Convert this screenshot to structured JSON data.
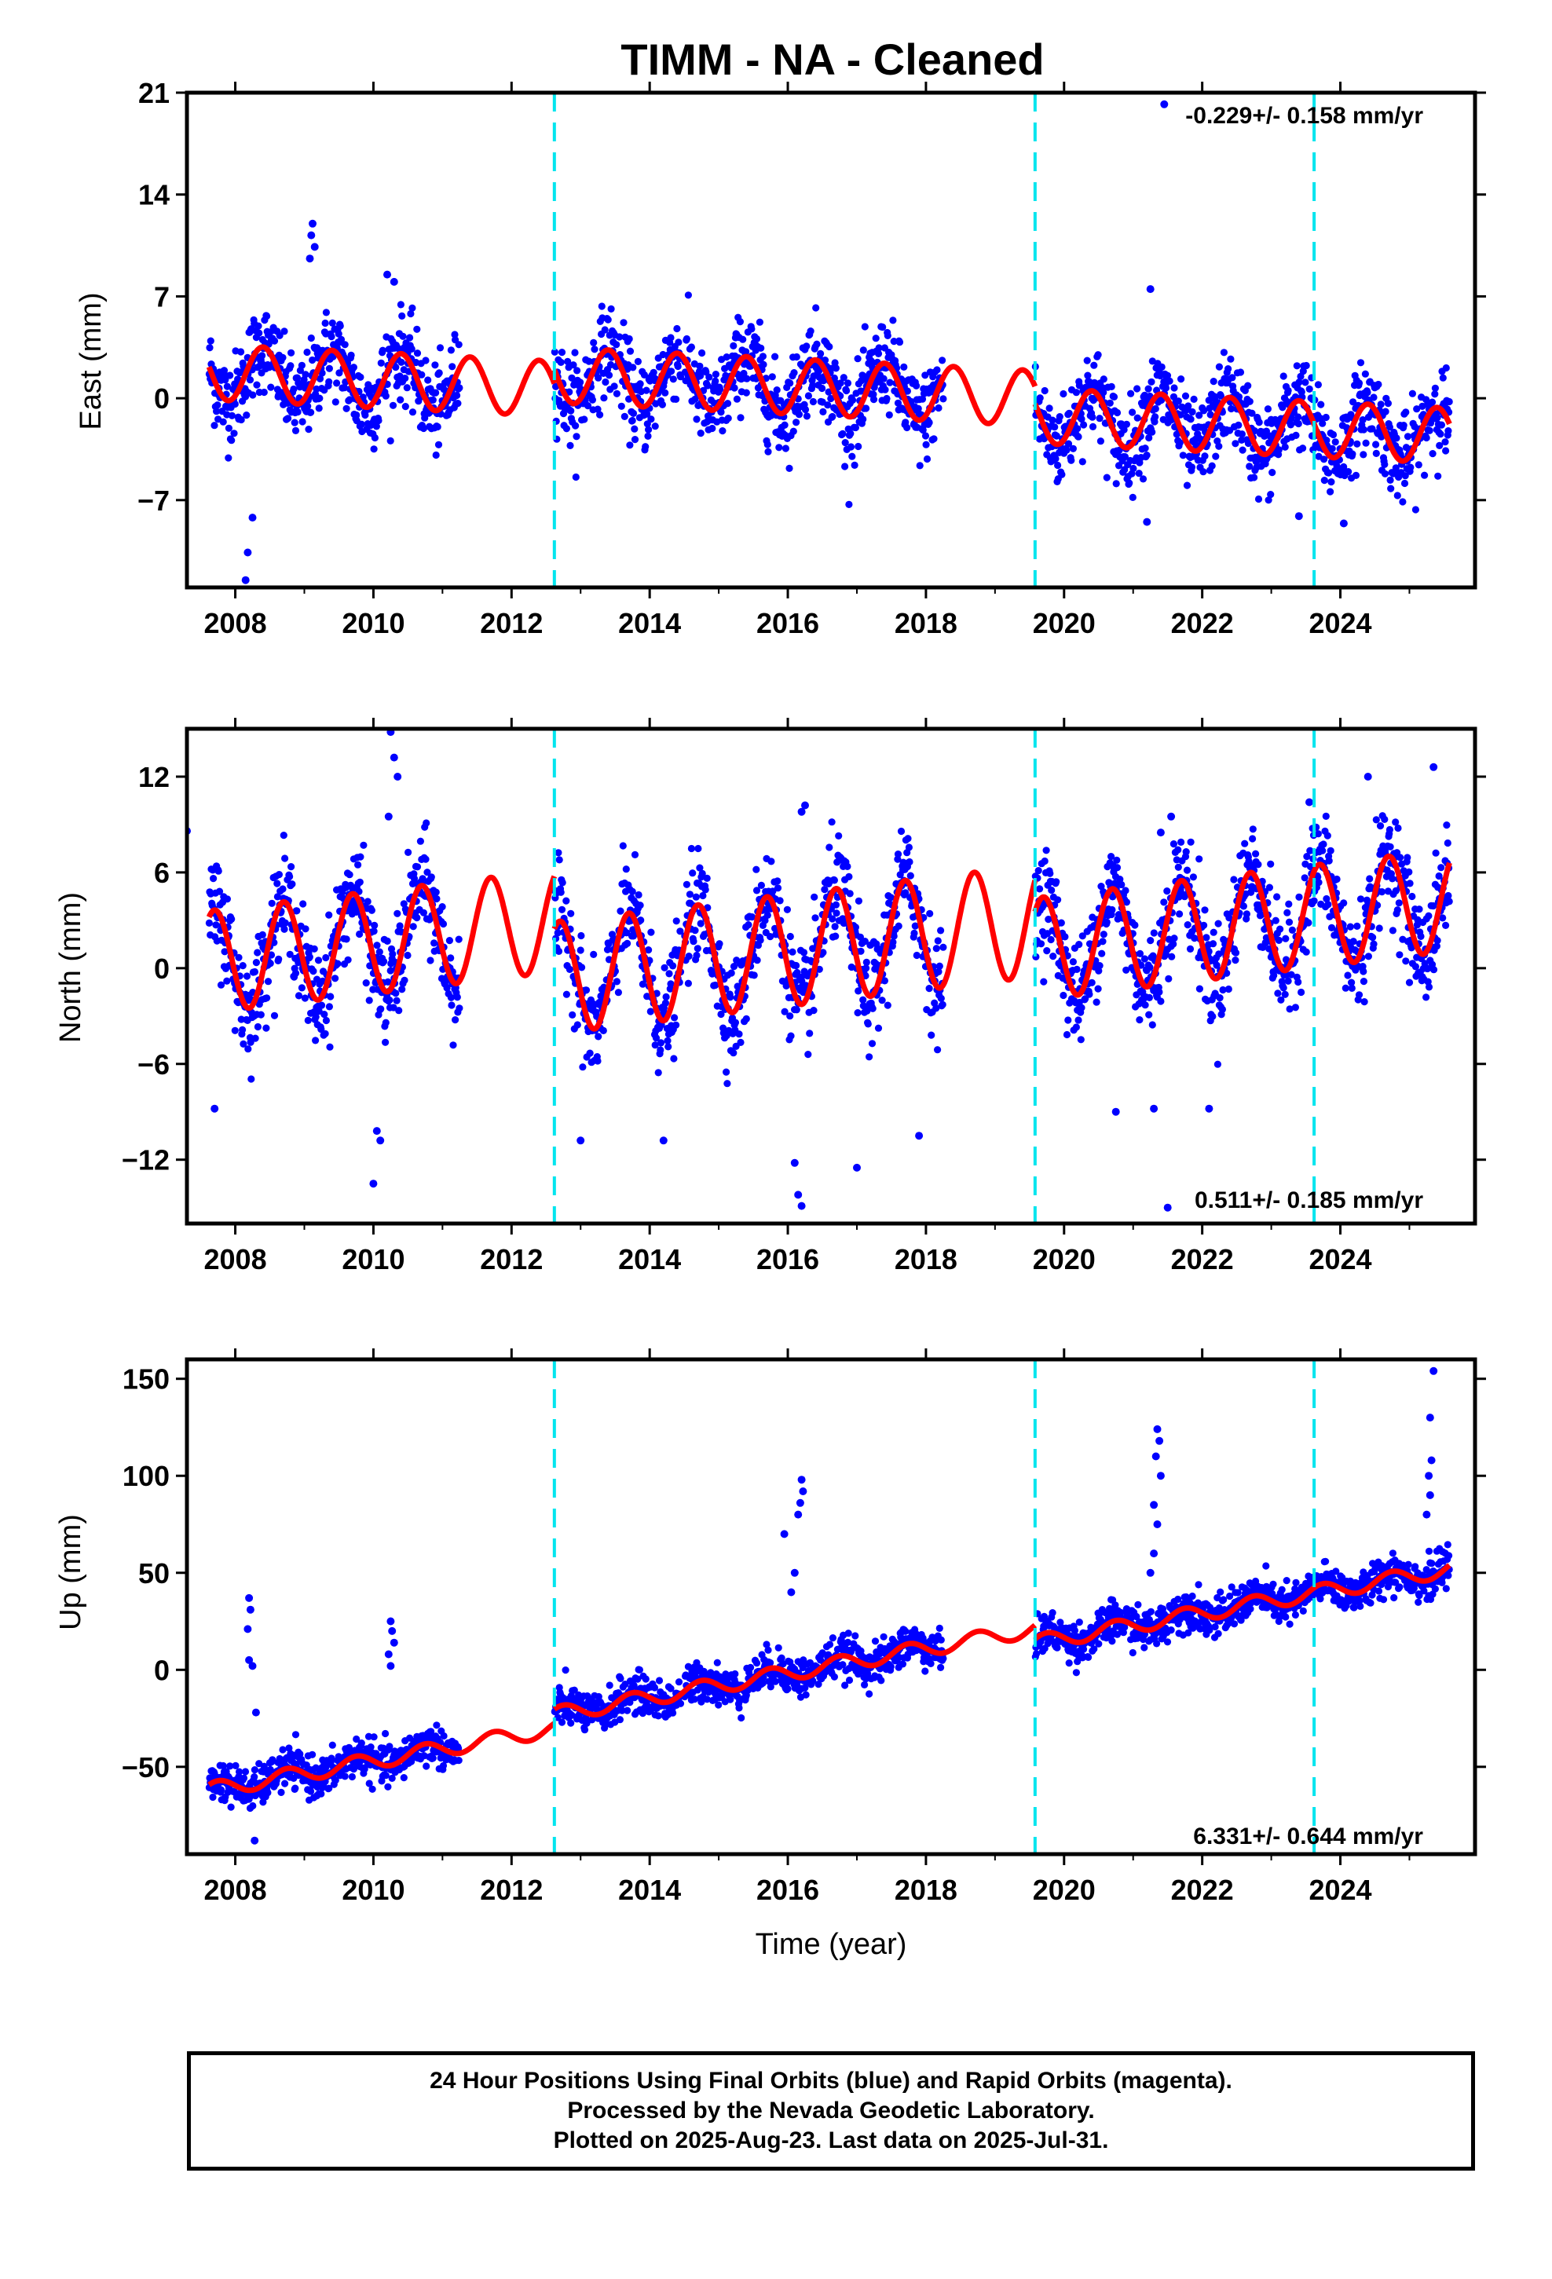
{
  "title": "TIMM  - NA - Cleaned",
  "footer": {
    "line1": "24 Hour Positions Using Final Orbits (blue) and Rapid Orbits (magenta).",
    "line2": "Processed by the Nevada Geodetic Laboratory.",
    "line3": "Plotted on 2025-Aug-23. Last data on 2025-Jul-31."
  },
  "colors": {
    "final_orbits": "#0000ff",
    "model": "#ff0000",
    "offsets": "#00e5ee"
  },
  "chart_data": [
    {
      "type": "scatter",
      "component": "East",
      "ylabel": "East (mm)",
      "xlabel": "",
      "xlim": [
        2007.3,
        2025.95
      ],
      "ylim": [
        -13,
        21
      ],
      "yticks": [
        21,
        14,
        7,
        0,
        -7
      ],
      "xticks": [
        2008,
        2010,
        2012,
        2014,
        2016,
        2018,
        2020,
        2022,
        2024
      ],
      "rate_text": "-0.229+/- 0.158 mm/yr",
      "offsets": [
        2012.62,
        2019.58,
        2023.62
      ],
      "data_segments": [
        [
          2007.62,
          2011.25
        ],
        [
          2012.62,
          2014.45
        ],
        [
          2014.5,
          2018.25
        ],
        [
          2019.58,
          2025.58
        ]
      ],
      "model": {
        "segments": [
          {
            "from": 2007.62,
            "to": 2012.62,
            "mean": 1.8,
            "slope": -0.229,
            "ref": 2007.62,
            "amp": 1.9,
            "phase": 0.15
          },
          {
            "from": 2012.62,
            "to": 2019.58,
            "mean": 1.6,
            "slope": -0.229,
            "ref": 2012.62,
            "amp": 1.9,
            "phase": 0.15
          },
          {
            "from": 2019.58,
            "to": 2025.58,
            "mean": -1.2,
            "slope": -0.229,
            "ref": 2019.58,
            "amp": 1.9,
            "phase": 0.15
          }
        ]
      },
      "scatter_sd": 1.5,
      "outliers": [
        [
          2009.12,
          12.0
        ],
        [
          2009.1,
          11.2
        ],
        [
          2009.15,
          10.4
        ],
        [
          2009.08,
          9.6
        ],
        [
          2010.2,
          8.5
        ],
        [
          2010.3,
          8.0
        ],
        [
          2008.25,
          -8.2
        ],
        [
          2008.18,
          -10.6
        ],
        [
          2008.15,
          -12.5
        ],
        [
          2021.45,
          20.2
        ],
        [
          2021.25,
          7.5
        ],
        [
          2021.2,
          -8.5
        ],
        [
          2023.4,
          -8.1
        ],
        [
          2024.05,
          -8.6
        ]
      ]
    },
    {
      "type": "scatter",
      "component": "North",
      "ylabel": "North (mm)",
      "xlabel": "",
      "xlim": [
        2007.3,
        2025.95
      ],
      "ylim": [
        -16,
        15
      ],
      "yticks": [
        12,
        6,
        0,
        -6,
        -12
      ],
      "xticks": [
        2008,
        2010,
        2012,
        2014,
        2016,
        2018,
        2020,
        2022,
        2024
      ],
      "rate_text": "0.511+/- 0.185 mm/yr",
      "offsets": [
        2012.62,
        2019.58,
        2023.62
      ],
      "data_segments": [
        [
          2007.62,
          2011.25
        ],
        [
          2012.62,
          2014.45
        ],
        [
          2014.5,
          2018.25
        ],
        [
          2019.58,
          2025.58
        ]
      ],
      "model": {
        "segments": [
          {
            "from": 2007.62,
            "to": 2012.62,
            "mean": 0.4,
            "slope": 0.511,
            "ref": 2007.62,
            "amp": 3.2,
            "phase": 0.45
          },
          {
            "from": 2012.62,
            "to": 2019.58,
            "mean": -0.6,
            "slope": 0.511,
            "ref": 2012.62,
            "amp": 3.5,
            "phase": 0.45
          },
          {
            "from": 2019.58,
            "to": 2025.58,
            "mean": 1.2,
            "slope": 0.511,
            "ref": 2019.58,
            "amp": 3.2,
            "phase": 0.45
          }
        ]
      },
      "scatter_sd": 1.6,
      "outliers": [
        [
          2007.3,
          8.6
        ],
        [
          2010.25,
          14.8
        ],
        [
          2010.3,
          13.2
        ],
        [
          2010.35,
          12.0
        ],
        [
          2010.22,
          9.5
        ],
        [
          2007.7,
          -8.8
        ],
        [
          2010.05,
          -10.2
        ],
        [
          2010.1,
          -10.8
        ],
        [
          2010.0,
          -13.5
        ],
        [
          2013.0,
          -10.8
        ],
        [
          2014.2,
          -10.8
        ],
        [
          2016.1,
          -12.2
        ],
        [
          2016.15,
          -14.2
        ],
        [
          2016.2,
          -14.9
        ],
        [
          2016.25,
          10.2
        ],
        [
          2016.2,
          9.8
        ],
        [
          2017.0,
          -12.5
        ],
        [
          2017.9,
          -10.5
        ],
        [
          2020.75,
          -9.0
        ],
        [
          2021.3,
          -8.8
        ],
        [
          2021.55,
          9.5
        ],
        [
          2021.4,
          8.5
        ],
        [
          2022.1,
          -8.8
        ],
        [
          2023.55,
          10.4
        ],
        [
          2024.4,
          12.0
        ],
        [
          2025.35,
          12.6
        ],
        [
          2021.5,
          -15.0
        ]
      ]
    },
    {
      "type": "scatter",
      "component": "Up",
      "ylabel": "Up (mm)",
      "xlabel": "Time (year)",
      "xlim": [
        2007.3,
        2025.95
      ],
      "ylim": [
        -95,
        160
      ],
      "yticks": [
        150,
        100,
        50,
        0,
        -50
      ],
      "xticks": [
        2008,
        2010,
        2012,
        2014,
        2016,
        2018,
        2020,
        2022,
        2024
      ],
      "rate_text": "6.331+/- 0.644 mm/yr",
      "offsets": [
        2012.62,
        2019.58,
        2023.62
      ],
      "data_segments": [
        [
          2007.62,
          2011.25
        ],
        [
          2012.62,
          2014.45
        ],
        [
          2014.5,
          2018.25
        ],
        [
          2019.58,
          2025.58
        ]
      ],
      "model": {
        "segments": [
          {
            "from": 2007.62,
            "to": 2012.62,
            "mean": -62,
            "slope": 6.331,
            "ref": 2007.62,
            "amp": 4.0,
            "phase": 0.5
          },
          {
            "from": 2012.62,
            "to": 2019.58,
            "mean": -23,
            "slope": 6.331,
            "ref": 2012.62,
            "amp": 4.0,
            "phase": 0.5
          },
          {
            "from": 2019.58,
            "to": 2025.58,
            "mean": 14,
            "slope": 6.331,
            "ref": 2019.58,
            "amp": 4.0,
            "phase": 0.5
          }
        ]
      },
      "scatter_sd": 5,
      "outliers": [
        [
          2008.2,
          37
        ],
        [
          2008.22,
          31
        ],
        [
          2008.18,
          21
        ],
        [
          2008.2,
          5
        ],
        [
          2008.25,
          2
        ],
        [
          2008.3,
          -22
        ],
        [
          2008.28,
          -88
        ],
        [
          2010.25,
          25
        ],
        [
          2010.27,
          20
        ],
        [
          2010.3,
          14
        ],
        [
          2010.22,
          8
        ],
        [
          2010.25,
          2
        ],
        [
          2015.95,
          70
        ],
        [
          2016.2,
          98
        ],
        [
          2016.22,
          92
        ],
        [
          2016.18,
          86
        ],
        [
          2016.15,
          80
        ],
        [
          2016.1,
          50
        ],
        [
          2016.05,
          40
        ],
        [
          2021.35,
          124
        ],
        [
          2021.38,
          118
        ],
        [
          2021.33,
          110
        ],
        [
          2021.4,
          100
        ],
        [
          2021.3,
          85
        ],
        [
          2021.35,
          75
        ],
        [
          2021.3,
          60
        ],
        [
          2021.25,
          50
        ],
        [
          2025.35,
          154
        ],
        [
          2025.3,
          130
        ],
        [
          2025.32,
          108
        ],
        [
          2025.28,
          100
        ],
        [
          2025.3,
          90
        ],
        [
          2025.25,
          80
        ]
      ]
    }
  ]
}
